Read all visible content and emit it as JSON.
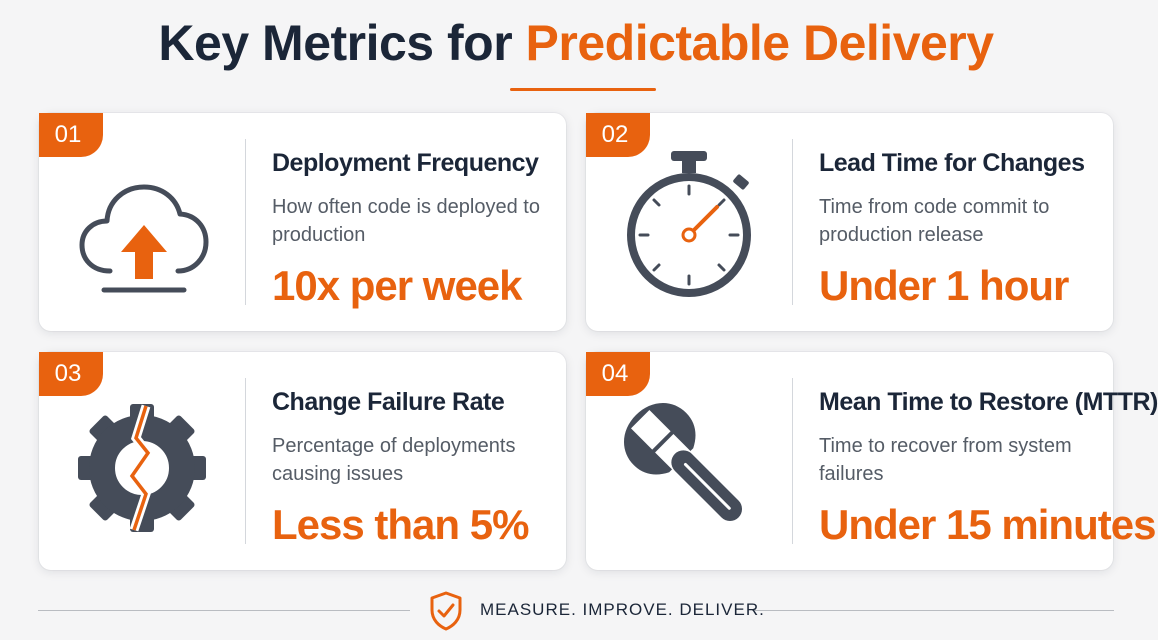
{
  "title": {
    "main": "Key Metrics for ",
    "accent": "Predictable Delivery"
  },
  "cards": [
    {
      "number": "01",
      "icon": "cloud-upload-icon",
      "name": "Deployment Frequency",
      "description": "How often code is deployed to production",
      "value": "10x per week"
    },
    {
      "number": "02",
      "icon": "stopwatch-icon",
      "name": "Lead Time for Changes",
      "description": "Time from code commit to production release",
      "value": "Under 1 hour"
    },
    {
      "number": "03",
      "icon": "broken-gear-icon",
      "name": "Change Failure Rate",
      "description": "Percentage of deployments causing issues",
      "value": "Less than 5%"
    },
    {
      "number": "04",
      "icon": "wrench-icon",
      "name": "Mean Time to Restore (MTTR)",
      "description": "Time to recover from system failures",
      "value": "Under 15 minutes"
    }
  ],
  "footer": {
    "icon": "shield-check-icon",
    "text": "MEASURE. IMPROVE. DELIVER."
  },
  "colors": {
    "accent": "#e8620f",
    "dark": "#1b2638",
    "icon_gray": "#454c59"
  }
}
